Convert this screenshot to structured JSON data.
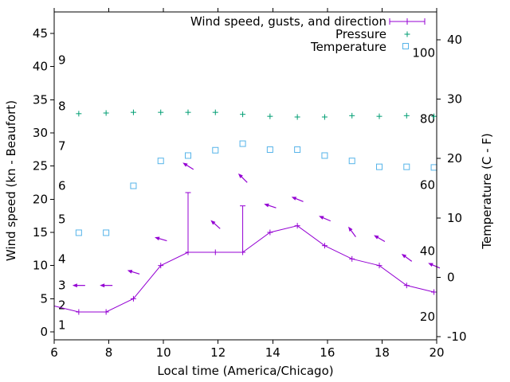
{
  "chart_data": {
    "type": "line",
    "title": "",
    "xlabel": "Local time (America/Chicago)",
    "x_ticks": [
      6,
      8,
      10,
      12,
      14,
      16,
      18,
      20
    ],
    "xlim": [
      6,
      20
    ],
    "x": [
      6.9,
      7.9,
      8.9,
      9.9,
      10.9,
      11.9,
      12.9,
      13.9,
      14.9,
      15.9,
      16.9,
      17.9,
      18.9,
      19.9
    ],
    "y_left": {
      "label": "Wind speed (kn - Beaufort)",
      "ticks": [
        0,
        5,
        10,
        15,
        20,
        25,
        30,
        35,
        40,
        45
      ],
      "lim": [
        -1.2,
        48.4
      ],
      "beaufort_labels": [
        {
          "text": "1",
          "kn": 1
        },
        {
          "text": "2",
          "kn": 4
        },
        {
          "text": "3",
          "kn": 7
        },
        {
          "text": "4",
          "kn": 11
        },
        {
          "text": "5",
          "kn": 17
        },
        {
          "text": "6",
          "kn": 22
        },
        {
          "text": "7",
          "kn": 28
        },
        {
          "text": "8",
          "kn": 34
        },
        {
          "text": "9",
          "kn": 41
        }
      ]
    },
    "y_right": {
      "label": "Temperature (C - F)",
      "ticks": [
        -10,
        0,
        10,
        20,
        30,
        40
      ],
      "lim": [
        -10.6,
        45.0
      ],
      "fahrenheit_labels": [
        {
          "text": "20",
          "c": -6.67
        },
        {
          "text": "40",
          "c": 4.44
        },
        {
          "text": "60",
          "c": 15.56
        },
        {
          "text": "80",
          "c": 26.67
        },
        {
          "text": "100",
          "c": 37.78
        }
      ]
    },
    "legend_position": "top-right-inside",
    "series": [
      {
        "name": "Wind speed, gusts, and direction",
        "type": "line-errorbars-vectors",
        "axis": "left",
        "color": "#9400d3",
        "marker": "plus",
        "line_start": {
          "x": 6.0,
          "y": 3.9
        },
        "values": [
          3,
          3,
          5,
          10,
          12,
          12,
          12,
          15,
          16,
          13,
          11,
          10,
          7,
          6
        ],
        "gusts": [
          null,
          null,
          null,
          null,
          21,
          null,
          19,
          null,
          null,
          null,
          null,
          null,
          null,
          null
        ],
        "arrows": [
          {
            "y": 7,
            "angle": 180
          },
          {
            "y": 7,
            "angle": 180
          },
          {
            "y": 9,
            "angle": 163
          },
          {
            "y": 14,
            "angle": 164
          },
          {
            "y": 25,
            "angle": 148
          },
          {
            "y": 16.2,
            "angle": 138
          },
          {
            "y": 23.2,
            "angle": 135
          },
          {
            "y": 19,
            "angle": 162
          },
          {
            "y": 20,
            "angle": 158
          },
          {
            "y": 17.1,
            "angle": 157
          },
          {
            "y": 15.1,
            "angle": 126
          },
          {
            "y": 14.1,
            "angle": 150
          },
          {
            "y": 11.2,
            "angle": 144
          },
          {
            "y": 10,
            "angle": 157
          }
        ]
      },
      {
        "name": "Pressure",
        "type": "points",
        "axis": "left",
        "units": "plotted position on left axis (pressure scale not shown)",
        "color": "#009e73",
        "marker": "plus",
        "values": [
          32.9,
          33.0,
          33.1,
          33.1,
          33.1,
          33.1,
          32.8,
          32.5,
          32.4,
          32.4,
          32.6,
          32.5,
          32.6,
          32.5
        ]
      },
      {
        "name": "Temperature",
        "type": "points",
        "axis": "right",
        "units": "C",
        "color": "#56b4e9",
        "marker": "open-square",
        "values": [
          7.5,
          7.5,
          15.4,
          19.6,
          20.5,
          21.4,
          22.5,
          21.5,
          21.5,
          20.5,
          19.6,
          18.6,
          18.6,
          18.5
        ]
      }
    ],
    "grid": false,
    "tick_direction": "out",
    "background": "#ffffff",
    "border_color": "#000000"
  }
}
